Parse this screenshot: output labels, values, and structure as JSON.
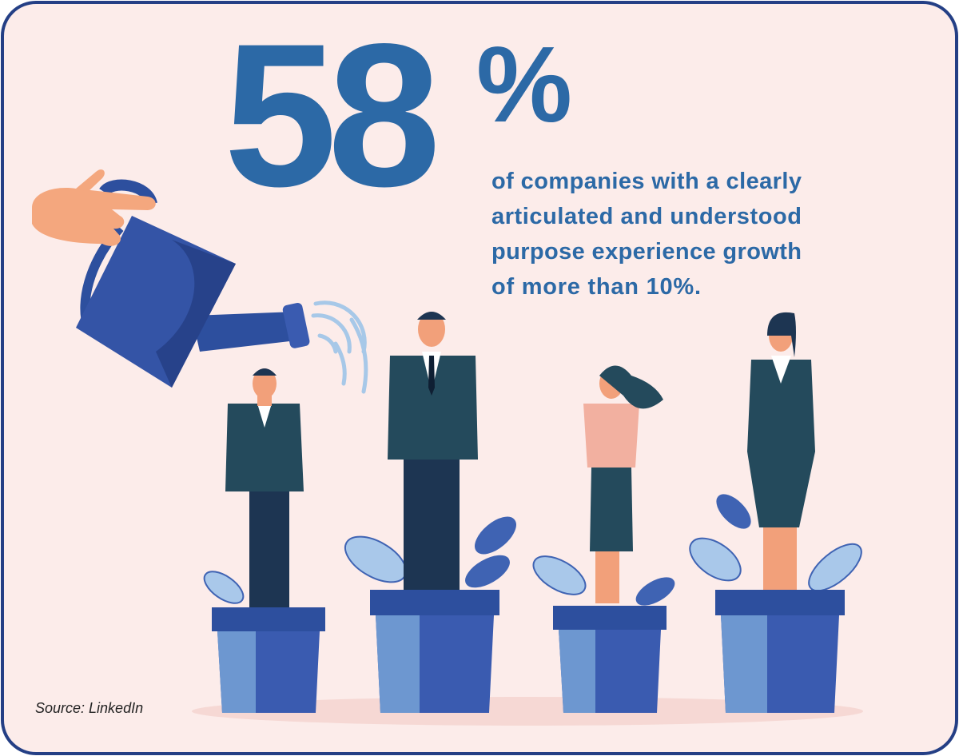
{
  "headline": {
    "number": "58",
    "unit": "%"
  },
  "description": {
    "lines": [
      "of companies with a clearly",
      "articulated and understood",
      "purpose experience growth",
      "of more than 10%."
    ]
  },
  "source": "Source: LinkedIn"
}
